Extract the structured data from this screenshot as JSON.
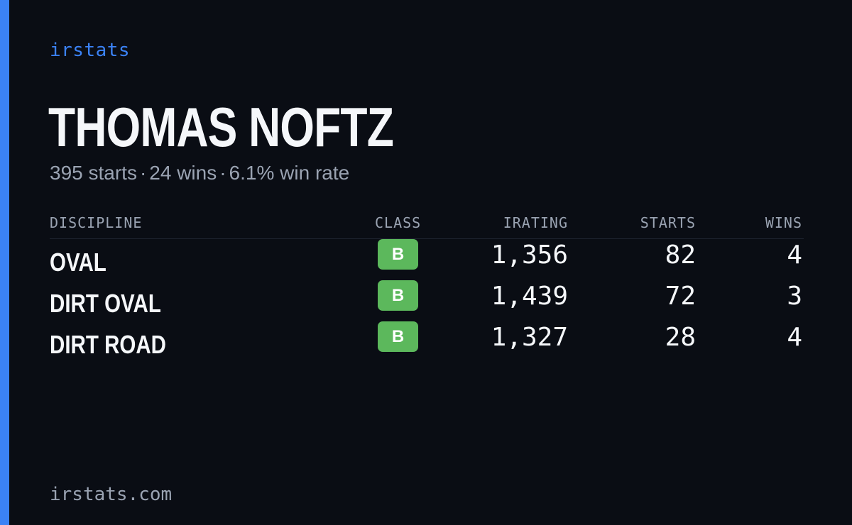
{
  "brand": "irstats",
  "driver": {
    "name": "THOMAS NOFTZ",
    "starts_text": "395 starts",
    "wins_text": "24 wins",
    "winrate_text": "6.1% win rate",
    "separator": "·"
  },
  "table": {
    "headers": {
      "discipline": "DISCIPLINE",
      "class": "CLASS",
      "irating": "IRATING",
      "starts": "STARTS",
      "wins": "WINS"
    },
    "rows": [
      {
        "discipline": "OVAL",
        "class": "B",
        "irating": "1,356",
        "starts": "82",
        "wins": "4"
      },
      {
        "discipline": "DIRT OVAL",
        "class": "B",
        "irating": "1,439",
        "starts": "72",
        "wins": "3"
      },
      {
        "discipline": "DIRT ROAD",
        "class": "B",
        "irating": "1,327",
        "starts": "28",
        "wins": "4"
      }
    ]
  },
  "footer": "irstats.com",
  "colors": {
    "accent": "#3b82f6",
    "background": "#0a0d14",
    "class_b": "#5cb85c"
  }
}
